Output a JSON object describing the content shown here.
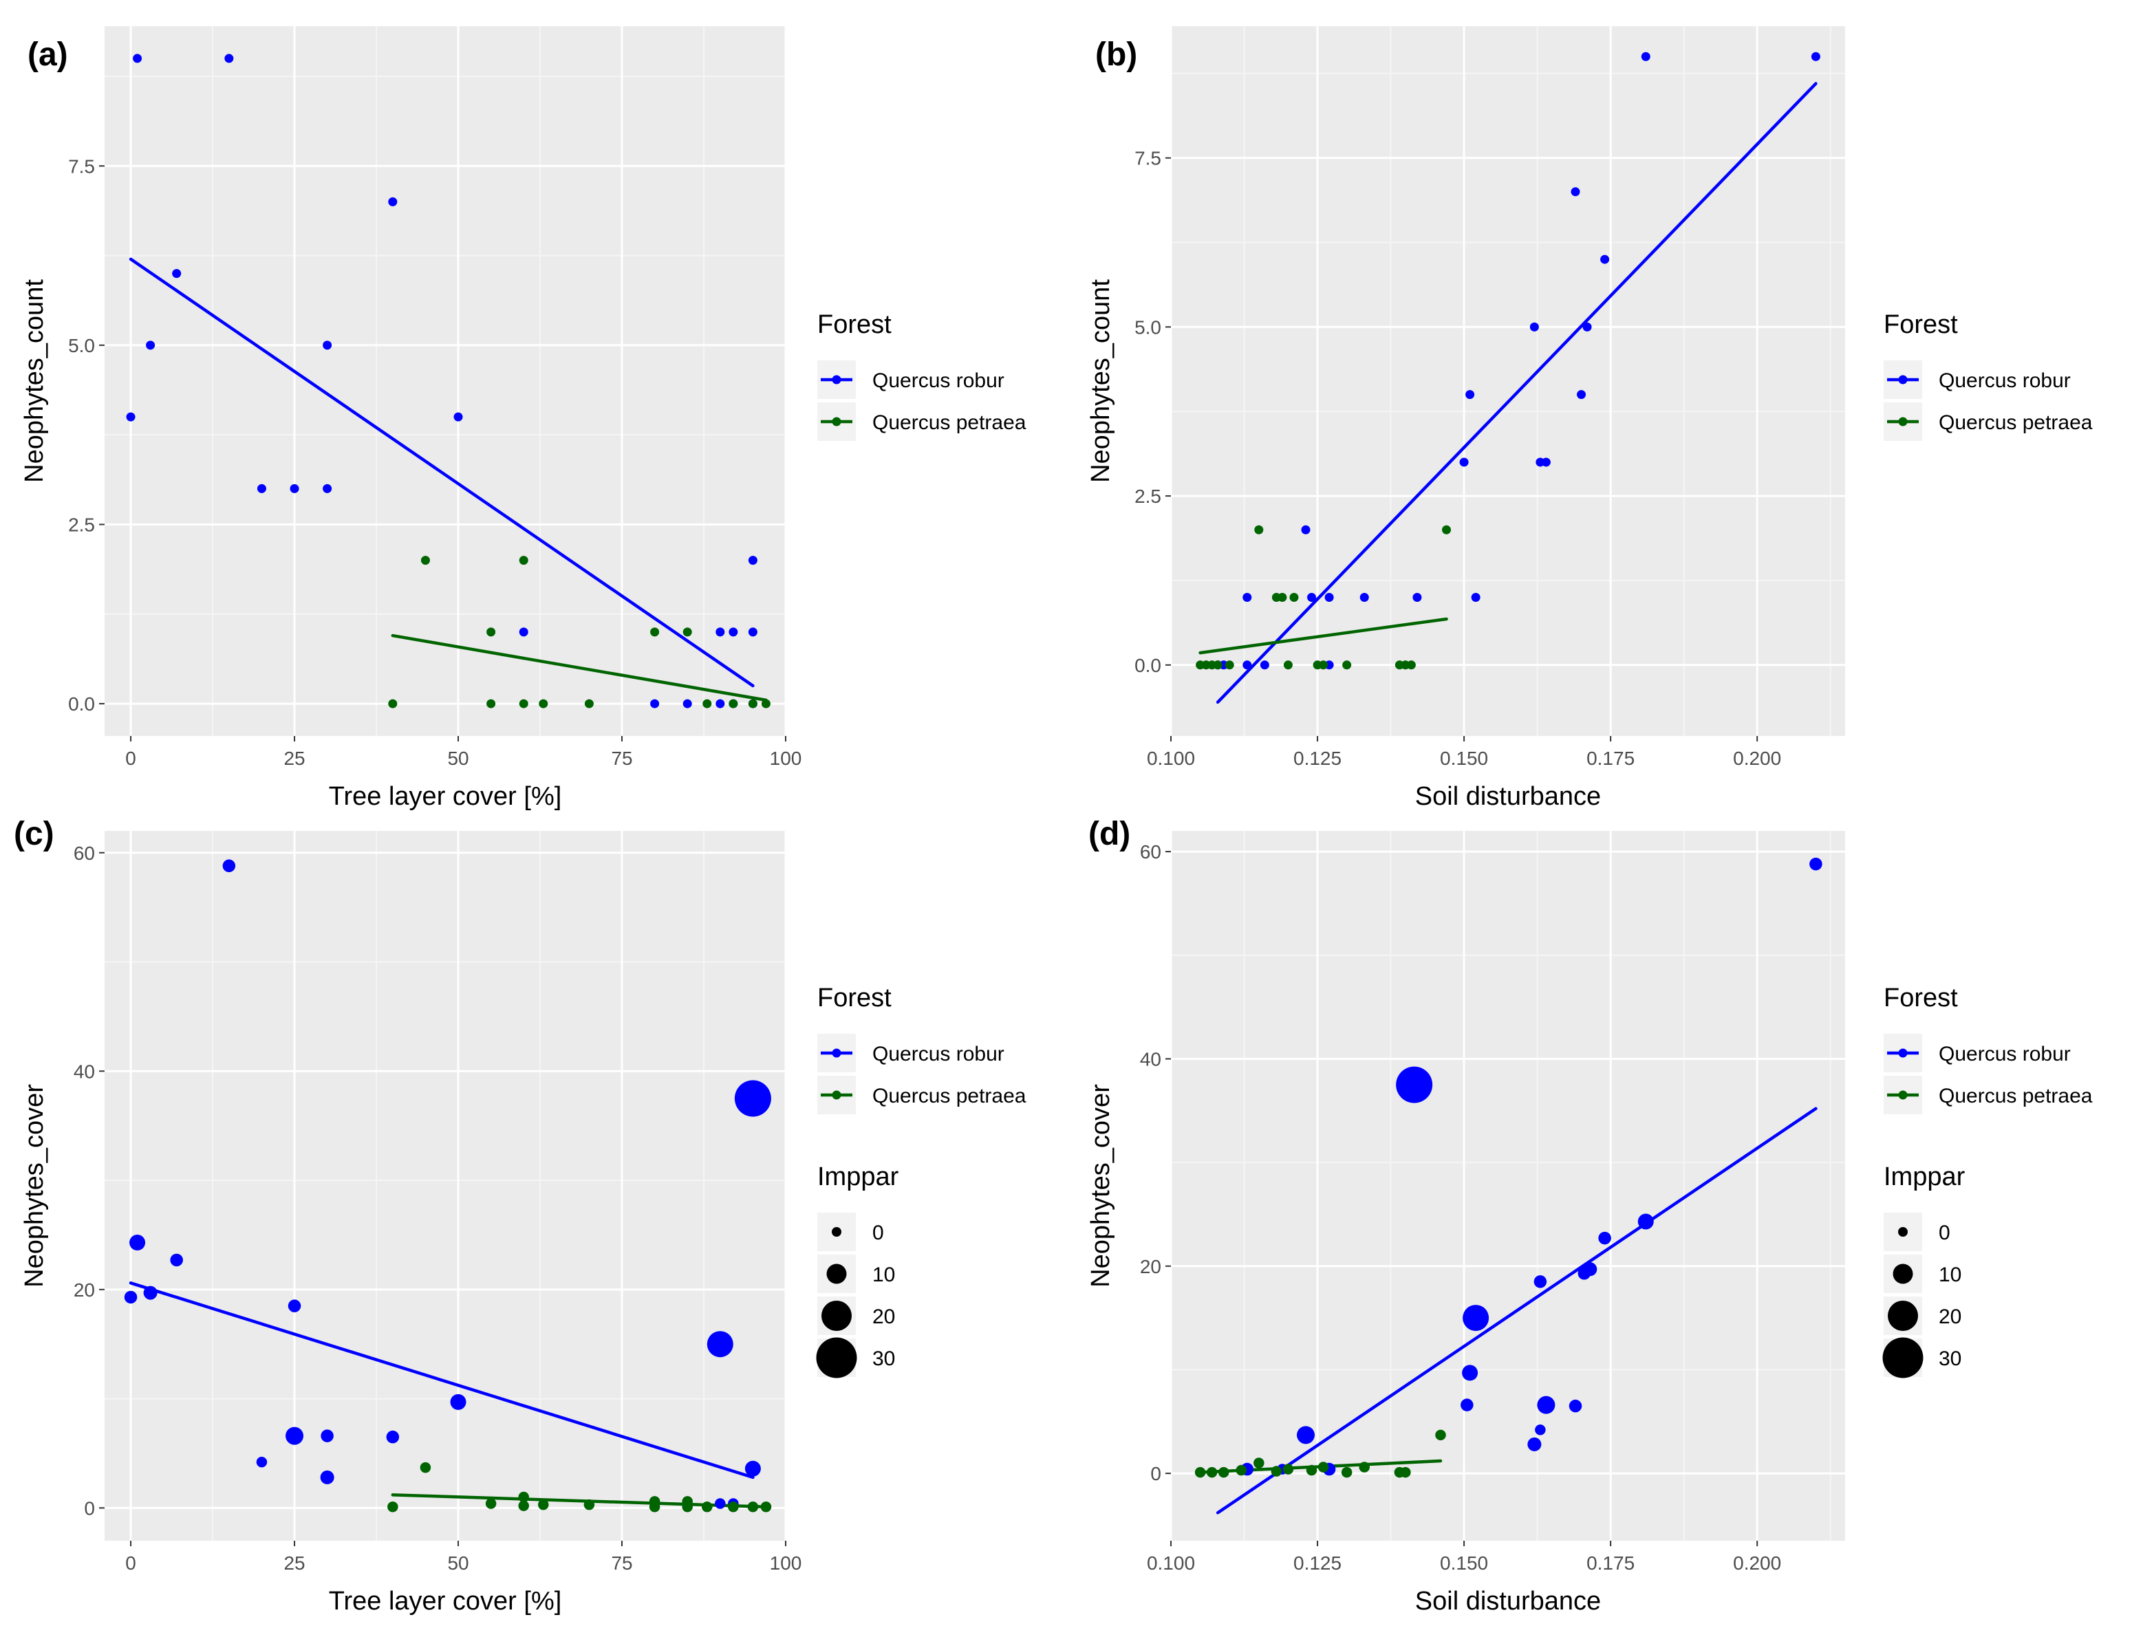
{
  "legend": {
    "forest_title": "Forest",
    "forest_entries": [
      {
        "label": "Quercus robur",
        "color": "#0000ff"
      },
      {
        "label": "Quercus petraea",
        "color": "#006400"
      }
    ],
    "size_title": "Imppar",
    "size_entries": [
      "0",
      "10",
      "20",
      "30"
    ]
  },
  "chart_data": [
    {
      "panel": "(a)",
      "type": "scatter",
      "xlabel": "Tree layer cover [%]",
      "ylabel": "Neophytes_count",
      "xlim": [
        -4,
        100
      ],
      "ylim": [
        -0.45,
        9.45
      ],
      "x_ticks": [
        0,
        25,
        50,
        75,
        100
      ],
      "x_tick_labels": [
        "0",
        "25",
        "50",
        "75",
        "100"
      ],
      "y_ticks": [
        0,
        2.5,
        5,
        7.5
      ],
      "y_tick_labels": [
        "0.0",
        "2.5",
        "5.0",
        "7.5"
      ],
      "grid": true,
      "series": [
        {
          "name": "Quercus robur",
          "color": "#0000ff",
          "points": [
            [
              0,
              4
            ],
            [
              1,
              9
            ],
            [
              3,
              5
            ],
            [
              7,
              6
            ],
            [
              15,
              9
            ],
            [
              20,
              3
            ],
            [
              25,
              3
            ],
            [
              30,
              5
            ],
            [
              30,
              3
            ],
            [
              40,
              7
            ],
            [
              50,
              4
            ],
            [
              60,
              1
            ],
            [
              80,
              0
            ],
            [
              85,
              0
            ],
            [
              90,
              1
            ],
            [
              90,
              0
            ],
            [
              92,
              1
            ],
            [
              92,
              0
            ],
            [
              95,
              2
            ],
            [
              95,
              1
            ],
            [
              95,
              0
            ]
          ],
          "fit": [
            [
              0,
              6.2
            ],
            [
              95,
              0.25
            ]
          ]
        },
        {
          "name": "Quercus petraea",
          "color": "#006400",
          "points": [
            [
              40,
              0
            ],
            [
              45,
              2
            ],
            [
              55,
              1
            ],
            [
              55,
              0
            ],
            [
              60,
              2
            ],
            [
              60,
              0
            ],
            [
              63,
              0
            ],
            [
              70,
              0
            ],
            [
              80,
              1
            ],
            [
              85,
              1
            ],
            [
              88,
              0
            ],
            [
              92,
              0
            ],
            [
              95,
              0
            ],
            [
              97,
              0
            ]
          ],
          "fit": [
            [
              40,
              0.95
            ],
            [
              97,
              0.05
            ]
          ]
        }
      ]
    },
    {
      "panel": "(b)",
      "type": "scatter",
      "xlabel": "Soil disturbance",
      "ylabel": "Neophytes_count",
      "xlim": [
        0.1,
        0.215
      ],
      "ylim": [
        -1.05,
        9.45
      ],
      "x_ticks": [
        0.1,
        0.125,
        0.15,
        0.175,
        0.2
      ],
      "x_tick_labels": [
        "0.100",
        "0.125",
        "0.150",
        "0.175",
        "0.200"
      ],
      "y_ticks": [
        0,
        2.5,
        5,
        7.5
      ],
      "y_tick_labels": [
        "0.0",
        "2.5",
        "5.0",
        "7.5"
      ],
      "grid": true,
      "series": [
        {
          "name": "Quercus robur",
          "color": "#0000ff",
          "points": [
            [
              0.108,
              0
            ],
            [
              0.109,
              0
            ],
            [
              0.113,
              1
            ],
            [
              0.113,
              0
            ],
            [
              0.116,
              0
            ],
            [
              0.123,
              2
            ],
            [
              0.124,
              1
            ],
            [
              0.127,
              1
            ],
            [
              0.127,
              0
            ],
            [
              0.133,
              1
            ],
            [
              0.142,
              1
            ],
            [
              0.15,
              3
            ],
            [
              0.151,
              4
            ],
            [
              0.152,
              1
            ],
            [
              0.162,
              5
            ],
            [
              0.163,
              3
            ],
            [
              0.164,
              3
            ],
            [
              0.169,
              7
            ],
            [
              0.17,
              4
            ],
            [
              0.171,
              5
            ],
            [
              0.174,
              6
            ],
            [
              0.181,
              9
            ],
            [
              0.21,
              9
            ]
          ],
          "fit": [
            [
              0.108,
              -0.55
            ],
            [
              0.21,
              8.6
            ]
          ]
        },
        {
          "name": "Quercus petraea",
          "color": "#006400",
          "points": [
            [
              0.105,
              0
            ],
            [
              0.106,
              0
            ],
            [
              0.107,
              0
            ],
            [
              0.108,
              0
            ],
            [
              0.11,
              0
            ],
            [
              0.115,
              2
            ],
            [
              0.118,
              1
            ],
            [
              0.119,
              1
            ],
            [
              0.12,
              0
            ],
            [
              0.121,
              1
            ],
            [
              0.125,
              0
            ],
            [
              0.126,
              0
            ],
            [
              0.13,
              0
            ],
            [
              0.139,
              0
            ],
            [
              0.14,
              0
            ],
            [
              0.141,
              0
            ],
            [
              0.147,
              2
            ]
          ],
          "fit": [
            [
              0.105,
              0.18
            ],
            [
              0.147,
              0.68
            ]
          ]
        }
      ]
    },
    {
      "panel": "(c)",
      "type": "scatter",
      "xlabel": "Tree layer cover [%]",
      "ylabel": "Neophytes_cover",
      "size_legend": "Imppar",
      "xlim": [
        -4,
        100
      ],
      "ylim": [
        -3,
        62
      ],
      "x_ticks": [
        0,
        25,
        50,
        75,
        100
      ],
      "x_tick_labels": [
        "0",
        "25",
        "50",
        "75",
        "100"
      ],
      "y_ticks": [
        0,
        20,
        40,
        60
      ],
      "y_tick_labels": [
        "0",
        "20",
        "40",
        "60"
      ],
      "grid": true,
      "series": [
        {
          "name": "Quercus robur",
          "color": "#0000ff",
          "points": [
            [
              0,
              19.3,
              3
            ],
            [
              1,
              24.3,
              6
            ],
            [
              3,
              19.7,
              4
            ],
            [
              7,
              22.7,
              3
            ],
            [
              15,
              58.8,
              3
            ],
            [
              20,
              4.2,
              1
            ],
            [
              25,
              18.5,
              3
            ],
            [
              25,
              6.6,
              8
            ],
            [
              30,
              6.6,
              3
            ],
            [
              30,
              2.8,
              4
            ],
            [
              40,
              6.5,
              3
            ],
            [
              50,
              9.7,
              6
            ],
            [
              90,
              0.4,
              1
            ],
            [
              90,
              15,
              16
            ],
            [
              92,
              0.4,
              1
            ],
            [
              95,
              37.5,
              26
            ],
            [
              95,
              3.6,
              6
            ]
          ],
          "fit": [
            [
              0,
              20.6
            ],
            [
              95,
              2.8
            ]
          ]
        },
        {
          "name": "Quercus petraea",
          "color": "#006400",
          "points": [
            [
              40,
              0.1,
              1
            ],
            [
              45,
              3.7,
              1
            ],
            [
              55,
              0.4,
              1
            ],
            [
              60,
              1,
              1
            ],
            [
              60,
              0.2,
              1
            ],
            [
              63,
              0.3,
              1
            ],
            [
              70,
              0.3,
              1
            ],
            [
              80,
              0.6,
              1
            ],
            [
              80,
              0.1,
              1
            ],
            [
              85,
              0.6,
              1
            ],
            [
              85,
              0.1,
              1
            ],
            [
              88,
              0.1,
              1
            ],
            [
              92,
              0.1,
              1
            ],
            [
              95,
              0.1,
              1
            ],
            [
              97,
              0.1,
              1
            ]
          ],
          "fit": [
            [
              40,
              1.2
            ],
            [
              97,
              0.1
            ]
          ]
        }
      ]
    },
    {
      "panel": "(d)",
      "type": "scatter",
      "xlabel": "Soil disturbance",
      "ylabel": "Neophytes_cover",
      "size_legend": "Imppar",
      "xlim": [
        0.1,
        0.215
      ],
      "ylim": [
        -6.5,
        62
      ],
      "x_ticks": [
        0.1,
        0.125,
        0.15,
        0.175,
        0.2
      ],
      "x_tick_labels": [
        "0.100",
        "0.125",
        "0.150",
        "0.175",
        "0.200"
      ],
      "y_ticks": [
        0,
        20,
        40,
        60
      ],
      "y_tick_labels": [
        "0",
        "20",
        "40",
        "60"
      ],
      "grid": true,
      "series": [
        {
          "name": "Quercus robur",
          "color": "#0000ff",
          "points": [
            [
              0.113,
              0.4,
              3
            ],
            [
              0.119,
              0.4,
              1
            ],
            [
              0.123,
              3.7,
              8
            ],
            [
              0.127,
              0.4,
              3
            ],
            [
              0.1415,
              37.5,
              26
            ],
            [
              0.1505,
              6.6,
              3
            ],
            [
              0.151,
              9.7,
              6
            ],
            [
              0.152,
              15,
              16
            ],
            [
              0.162,
              2.8,
              4
            ],
            [
              0.163,
              4.2,
              1
            ],
            [
              0.163,
              18.5,
              3
            ],
            [
              0.164,
              6.6,
              8
            ],
            [
              0.169,
              6.5,
              3
            ],
            [
              0.1705,
              19.3,
              3
            ],
            [
              0.1715,
              19.7,
              4
            ],
            [
              0.174,
              22.7,
              3
            ],
            [
              0.181,
              24.3,
              6
            ],
            [
              0.21,
              58.8,
              3
            ]
          ],
          "fit": [
            [
              0.108,
              -3.8
            ],
            [
              0.21,
              35.2
            ]
          ]
        },
        {
          "name": "Quercus petraea",
          "color": "#006400",
          "points": [
            [
              0.105,
              0.1,
              1
            ],
            [
              0.107,
              0.1,
              1
            ],
            [
              0.109,
              0.1,
              1
            ],
            [
              0.112,
              0.3,
              1
            ],
            [
              0.115,
              1,
              1
            ],
            [
              0.118,
              0.2,
              1
            ],
            [
              0.12,
              0.4,
              1
            ],
            [
              0.124,
              0.3,
              1
            ],
            [
              0.126,
              0.6,
              1
            ],
            [
              0.13,
              0.1,
              1
            ],
            [
              0.133,
              0.6,
              1
            ],
            [
              0.139,
              0.1,
              1
            ],
            [
              0.14,
              0.1,
              1
            ],
            [
              0.146,
              3.7,
              1
            ]
          ],
          "fit": [
            [
              0.105,
              0.1
            ],
            [
              0.146,
              1.2
            ]
          ]
        }
      ]
    }
  ]
}
